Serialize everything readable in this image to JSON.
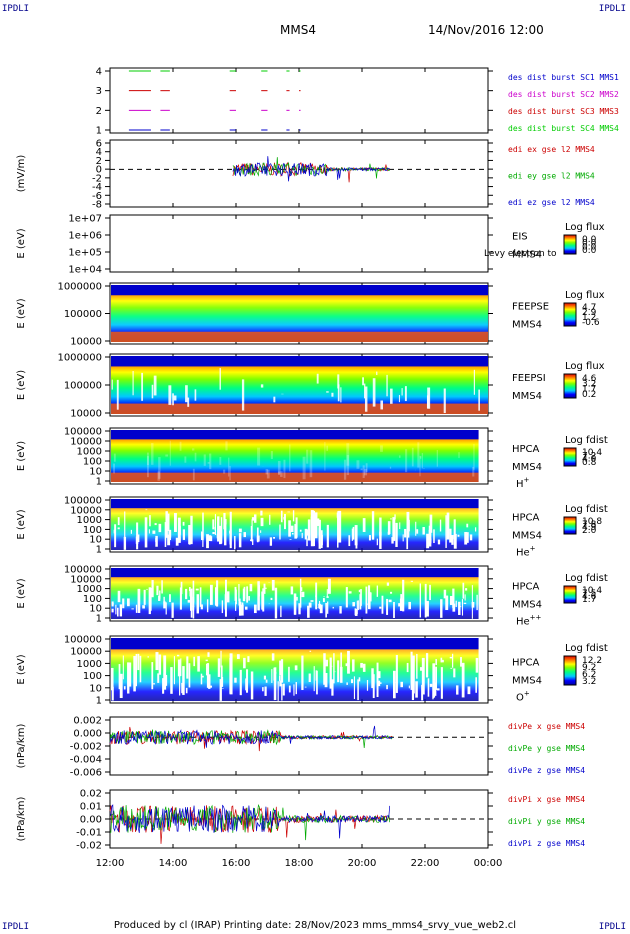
{
  "header": {
    "corner_left_top": "IPDLI",
    "corner_right_top": "IPDLI",
    "corner_left_bottom": "IPDLI",
    "corner_right_bottom": "IPDLI",
    "spacecraft": "MMS4",
    "datetime": "14/Nov/2016 12:00"
  },
  "footer": {
    "text": "Produced by cl (IRAP)   Printing date: 28/Nov/2023   mms_mms4_srvy_vue_web2.cl"
  },
  "time_axis": {
    "ticks": [
      "12:00",
      "14:00",
      "16:00",
      "18:00",
      "20:00",
      "22:00",
      "00:00"
    ],
    "hours": [
      12,
      14,
      16,
      18,
      20,
      22,
      24
    ]
  },
  "panels": [
    {
      "id": "burst",
      "ylabel": "",
      "yticks": [
        "4",
        "3",
        "2",
        "1"
      ],
      "labels": [
        {
          "text": "des dist burst SC1 MMS1",
          "color": "#0000cc"
        },
        {
          "text": "des dist burst SC2 MMS2",
          "color": "#cc00cc"
        },
        {
          "text": "des dist burst SC3 MMS3",
          "color": "#cc0000"
        },
        {
          "text": "des dist burst SC4 MMS4",
          "color": "#00cc00"
        }
      ]
    },
    {
      "id": "edi",
      "ylabel": "(mV/m)",
      "yticks": [
        "6",
        "4",
        "2",
        "0",
        "-2",
        "-4",
        "-6",
        "-8"
      ],
      "labels": [
        {
          "text": "edi ex gse l2 MMS4",
          "color": "#cc0000"
        },
        {
          "text": "edi ey gse l2 MMS4",
          "color": "#00aa00"
        },
        {
          "text": "edi ez gse l2 MMS4",
          "color": "#0000cc"
        }
      ]
    },
    {
      "id": "eis",
      "ylabel": "E (eV)",
      "yticks": [
        "1e+07",
        "1e+06",
        "1e+05",
        "1e+04"
      ],
      "instrument": "EIS",
      "sc": "MMS4",
      "overlay": "Levy electron to",
      "cbar_title": "Log flux",
      "cbar_ticks": [
        "0.0",
        "0.0",
        "0.0",
        "0.0"
      ]
    },
    {
      "id": "feepse",
      "ylabel": "E (eV)",
      "yticks": [
        "1000000",
        "100000",
        "10000"
      ],
      "instrument": "FEEPSE",
      "sc": "MMS4",
      "cbar_title": "Log flux",
      "cbar_ticks": [
        "4.7",
        "2.9",
        "1.2",
        "-0.6"
      ]
    },
    {
      "id": "feepsi",
      "ylabel": "E (eV)",
      "yticks": [
        "1000000",
        "100000",
        "10000"
      ],
      "instrument": "FEEPSI",
      "sc": "MMS4",
      "cbar_title": "Log flux",
      "cbar_ticks": [
        "4.6",
        "3.2",
        "1.7",
        "0.2"
      ]
    },
    {
      "id": "hpca_h",
      "ylabel": "E (eV)",
      "yticks": [
        "100000",
        "10000",
        "1000",
        "100",
        "10",
        "1"
      ],
      "instrument": "HPCA",
      "sc": "MMS4",
      "species": "H",
      "charge": "+",
      "cbar_title": "Log fdist",
      "cbar_ticks": [
        "10.4",
        "7.2",
        "4.0",
        "0.8"
      ]
    },
    {
      "id": "hpca_he",
      "ylabel": "E (eV)",
      "yticks": [
        "100000",
        "10000",
        "1000",
        "100",
        "10",
        "1"
      ],
      "instrument": "HPCA",
      "sc": "MMS4",
      "species": "He",
      "charge": "+",
      "cbar_title": "Log fdist",
      "cbar_ticks": [
        "10.8",
        "7.8",
        "4.9",
        "2.0"
      ]
    },
    {
      "id": "hpca_hepp",
      "ylabel": "E (eV)",
      "yticks": [
        "100000",
        "10000",
        "1000",
        "100",
        "10",
        "1"
      ],
      "instrument": "HPCA",
      "sc": "MMS4",
      "species": "He",
      "charge": "++",
      "cbar_title": "Log fdist",
      "cbar_ticks": [
        "10.4",
        "7.5",
        "4.6",
        "1.7"
      ]
    },
    {
      "id": "hpca_o",
      "ylabel": "E (eV)",
      "yticks": [
        "100000",
        "10000",
        "1000",
        "100",
        "10",
        "1"
      ],
      "instrument": "HPCA",
      "sc": "MMS4",
      "species": "O",
      "charge": "+",
      "cbar_title": "Log fdist",
      "cbar_ticks": [
        "12.2",
        "9.2",
        "6.2",
        "3.2"
      ]
    },
    {
      "id": "divpe",
      "ylabel": "(nPa/km)",
      "yticks": [
        "0.002",
        "0.000",
        "-0.002",
        "-0.004",
        "-0.006"
      ],
      "labels": [
        {
          "text": "divPe x gse MMS4",
          "color": "#cc0000"
        },
        {
          "text": "divPe y gse MMS4",
          "color": "#00aa00"
        },
        {
          "text": "divPe z gse MMS4",
          "color": "#0000cc"
        }
      ]
    },
    {
      "id": "divpi",
      "ylabel": "(nPa/km)",
      "yticks": [
        "0.02",
        "0.01",
        "0.00",
        "-0.01",
        "-0.02"
      ],
      "labels": [
        {
          "text": "divPi x gse MMS4",
          "color": "#cc0000"
        },
        {
          "text": "divPi y gse MMS4",
          "color": "#00aa00"
        },
        {
          "text": "divPi z gse MMS4",
          "color": "#0000cc"
        }
      ]
    }
  ],
  "chart_data": {
    "type": "line",
    "x_unit": "UT hour (14/Nov/2016 12:00 to 15/Nov/2016 00:00)",
    "xlim": [
      12,
      24
    ],
    "burst_intervals": {
      "series": [
        {
          "name": "des dist burst SC1 MMS1",
          "level": 1,
          "color": "#0000cc",
          "intervals": [
            [
              12.6,
              13.3
            ],
            [
              13.6,
              13.9
            ],
            [
              15.8,
              16.0
            ],
            [
              16.8,
              17.0
            ],
            [
              17.6,
              17.7
            ],
            [
              18.0,
              18.05
            ]
          ]
        },
        {
          "name": "des dist burst SC2 MMS2",
          "level": 2,
          "color": "#cc00cc",
          "intervals": [
            [
              12.6,
              13.3
            ],
            [
              13.6,
              13.9
            ],
            [
              15.8,
              16.0
            ],
            [
              16.8,
              17.0
            ],
            [
              17.6,
              17.7
            ],
            [
              18.0,
              18.05
            ]
          ]
        },
        {
          "name": "des dist burst SC3 MMS3",
          "level": 3,
          "color": "#cc0000",
          "intervals": [
            [
              12.6,
              13.3
            ],
            [
              13.6,
              13.9
            ],
            [
              15.8,
              16.0
            ],
            [
              16.8,
              17.0
            ],
            [
              17.6,
              17.7
            ],
            [
              18.0,
              18.05
            ]
          ]
        },
        {
          "name": "des dist burst SC4 MMS4",
          "level": 4,
          "color": "#00cc00",
          "intervals": [
            [
              12.6,
              13.3
            ],
            [
              13.6,
              13.9
            ],
            [
              15.8,
              16.0
            ],
            [
              16.8,
              17.0
            ],
            [
              17.6,
              17.7
            ],
            [
              18.0,
              18.05
            ]
          ]
        }
      ],
      "ylim": [
        0.5,
        4.5
      ]
    },
    "edi": {
      "ylim": [
        -9,
        7
      ],
      "active_range": [
        15.9,
        20.9
      ],
      "dashed_zero": true
    },
    "feepse": {
      "ylim_log10": [
        4,
        6.2
      ]
    },
    "feepsi": {
      "ylim_log10": [
        4,
        6.2
      ]
    },
    "hpca_ylim_log10": [
      0,
      5
    ],
    "divpe": {
      "ylim": [
        -0.0065,
        0.0035
      ],
      "active_range": [
        12.0,
        21.0
      ],
      "dashed_zero": true
    },
    "divpi": {
      "ylim": [
        -0.025,
        0.025
      ],
      "active_range": [
        12.0,
        20.9
      ],
      "dashed_zero": true
    }
  }
}
